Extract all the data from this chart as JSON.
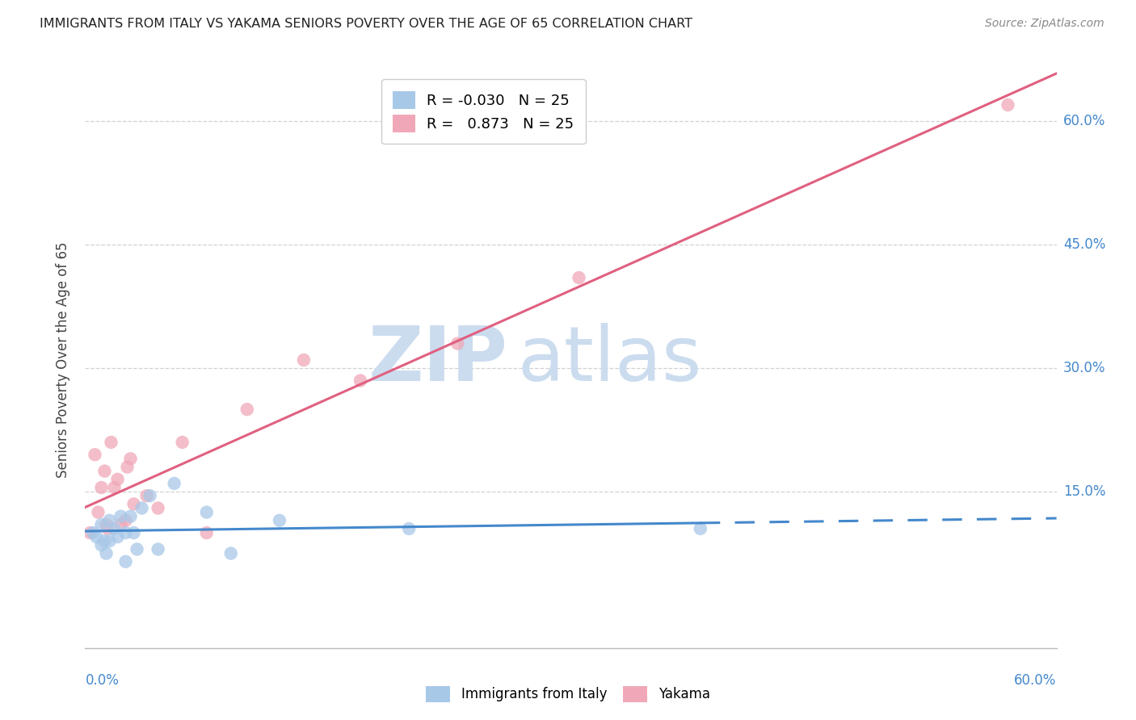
{
  "title": "IMMIGRANTS FROM ITALY VS YAKAMA SENIORS POVERTY OVER THE AGE OF 65 CORRELATION CHART",
  "source": "Source: ZipAtlas.com",
  "ylabel": "Seniors Poverty Over the Age of 65",
  "xlim": [
    0.0,
    0.6
  ],
  "ylim": [
    -0.04,
    0.66
  ],
  "yticks": [
    0.0,
    0.15,
    0.3,
    0.45,
    0.6
  ],
  "ytick_labels": [
    "",
    "15.0%",
    "30.0%",
    "45.0%",
    "60.0%"
  ],
  "legend_r_italy": "-0.030",
  "legend_n_italy": "25",
  "legend_r_yakama": "0.873",
  "legend_n_yakama": "25",
  "color_italy": "#a8c8e8",
  "color_yakama": "#f0a8b8",
  "line_color_italy": "#4488cc",
  "line_color_yakama": "#e06080",
  "watermark_zip": "ZIP",
  "watermark_atlas": "atlas",
  "watermark_color": "#ccdcef",
  "italy_x": [
    0.005,
    0.007,
    0.01,
    0.01,
    0.012,
    0.013,
    0.015,
    0.015,
    0.018,
    0.02,
    0.022,
    0.025,
    0.025,
    0.028,
    0.03,
    0.032,
    0.035,
    0.04,
    0.045,
    0.055,
    0.075,
    0.09,
    0.12,
    0.2,
    0.38
  ],
  "italy_y": [
    0.1,
    0.095,
    0.11,
    0.085,
    0.09,
    0.075,
    0.115,
    0.09,
    0.105,
    0.095,
    0.12,
    0.065,
    0.1,
    0.12,
    0.1,
    0.08,
    0.13,
    0.145,
    0.08,
    0.16,
    0.125,
    0.075,
    0.115,
    0.105,
    0.105
  ],
  "yakama_x": [
    0.003,
    0.006,
    0.008,
    0.01,
    0.012,
    0.013,
    0.014,
    0.016,
    0.018,
    0.02,
    0.022,
    0.025,
    0.026,
    0.028,
    0.03,
    0.038,
    0.045,
    0.06,
    0.075,
    0.1,
    0.135,
    0.17,
    0.23,
    0.305,
    0.57
  ],
  "yakama_y": [
    0.1,
    0.195,
    0.125,
    0.155,
    0.175,
    0.11,
    0.105,
    0.21,
    0.155,
    0.165,
    0.11,
    0.115,
    0.18,
    0.19,
    0.135,
    0.145,
    0.13,
    0.21,
    0.1,
    0.25,
    0.31,
    0.285,
    0.33,
    0.41,
    0.62
  ],
  "background_color": "#ffffff",
  "grid_color": "#cccccc",
  "italy_line_solid_end": 0.38,
  "italy_line_dash_start": 0.38
}
